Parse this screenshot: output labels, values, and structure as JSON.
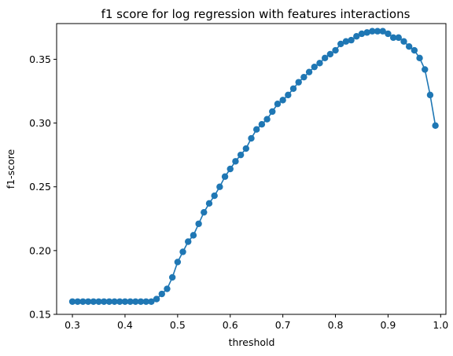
{
  "chart_data": {
    "type": "line",
    "title": "f1 score for log regression with features interactions",
    "xlabel": "threshold",
    "ylabel": "f1-score",
    "xlim": [
      0.27,
      1.01
    ],
    "ylim": [
      0.15,
      0.378
    ],
    "xticks": [
      0.3,
      0.4,
      0.5,
      0.6,
      0.7,
      0.8,
      0.9,
      1.0
    ],
    "xtick_labels": [
      "0.3",
      "0.4",
      "0.5",
      "0.6",
      "0.7",
      "0.8",
      "0.9",
      "1.0"
    ],
    "yticks": [
      0.15,
      0.2,
      0.25,
      0.3,
      0.35
    ],
    "ytick_labels": [
      "0.15",
      "0.20",
      "0.25",
      "0.30",
      "0.35"
    ],
    "grid": false,
    "legend": "none",
    "series": [
      {
        "color": "#1f77b4",
        "marker": "circle",
        "x": [
          0.3,
          0.31,
          0.32,
          0.33,
          0.34,
          0.35,
          0.36,
          0.37,
          0.38,
          0.39,
          0.4,
          0.41,
          0.42,
          0.43,
          0.44,
          0.45,
          0.46,
          0.47,
          0.48,
          0.49,
          0.5,
          0.51,
          0.52,
          0.53,
          0.54,
          0.55,
          0.56,
          0.57,
          0.58,
          0.59,
          0.6,
          0.61,
          0.62,
          0.63,
          0.64,
          0.65,
          0.66,
          0.67,
          0.68,
          0.69,
          0.7,
          0.71,
          0.72,
          0.73,
          0.74,
          0.75,
          0.76,
          0.77,
          0.78,
          0.79,
          0.8,
          0.81,
          0.82,
          0.83,
          0.84,
          0.85,
          0.86,
          0.87,
          0.88,
          0.89,
          0.9,
          0.91,
          0.92,
          0.93,
          0.94,
          0.95,
          0.96,
          0.97,
          0.98,
          0.99
        ],
        "y": [
          0.16,
          0.16,
          0.16,
          0.16,
          0.16,
          0.16,
          0.16,
          0.16,
          0.16,
          0.16,
          0.16,
          0.16,
          0.16,
          0.16,
          0.16,
          0.16,
          0.162,
          0.166,
          0.17,
          0.179,
          0.191,
          0.199,
          0.207,
          0.212,
          0.221,
          0.23,
          0.237,
          0.243,
          0.25,
          0.258,
          0.264,
          0.27,
          0.275,
          0.28,
          0.288,
          0.295,
          0.299,
          0.303,
          0.309,
          0.315,
          0.318,
          0.322,
          0.327,
          0.332,
          0.336,
          0.34,
          0.344,
          0.347,
          0.351,
          0.354,
          0.357,
          0.362,
          0.364,
          0.365,
          0.368,
          0.37,
          0.371,
          0.372,
          0.372,
          0.372,
          0.37,
          0.367,
          0.367,
          0.364,
          0.36,
          0.357,
          0.351,
          0.342,
          0.322,
          0.298
        ]
      }
    ]
  }
}
